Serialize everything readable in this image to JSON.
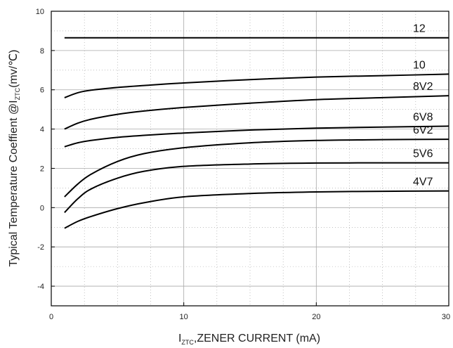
{
  "chart_data": {
    "type": "line",
    "title": "",
    "xlabel": {
      "main": "I",
      "sub": "ZTC",
      "rest": ",ZENER CURRENT (mA)"
    },
    "ylabel": {
      "main": "Typical Temperature Coeffient @I",
      "sub": "ZTC",
      "rest": "(mv/℃)"
    },
    "xlim": [
      0,
      30
    ],
    "ylim": [
      -5,
      10
    ],
    "xticks": [
      0,
      10,
      20,
      30
    ],
    "yticks": [
      -4,
      -2,
      0,
      2,
      4,
      6,
      8,
      10
    ],
    "grid": true,
    "series": [
      {
        "name": "12",
        "x": [
          1,
          2,
          3,
          5,
          7,
          10,
          15,
          20,
          25,
          30
        ],
        "y": [
          8.65,
          8.65,
          8.65,
          8.65,
          8.65,
          8.65,
          8.65,
          8.65,
          8.65,
          8.65
        ]
      },
      {
        "name": "10",
        "x": [
          1,
          2,
          3,
          5,
          7,
          10,
          15,
          20,
          25,
          30
        ],
        "y": [
          5.6,
          5.85,
          5.98,
          6.12,
          6.22,
          6.35,
          6.52,
          6.65,
          6.72,
          6.8
        ]
      },
      {
        "name": "8V2",
        "x": [
          1,
          2,
          3,
          5,
          7,
          10,
          15,
          20,
          25,
          30
        ],
        "y": [
          4.0,
          4.3,
          4.5,
          4.75,
          4.92,
          5.1,
          5.32,
          5.5,
          5.6,
          5.7
        ]
      },
      {
        "name": "6V8",
        "x": [
          1,
          2,
          3,
          5,
          7,
          10,
          15,
          20,
          25,
          30
        ],
        "y": [
          3.1,
          3.3,
          3.42,
          3.58,
          3.68,
          3.8,
          3.95,
          4.05,
          4.1,
          4.15
        ]
      },
      {
        "name": "6V2",
        "x": [
          1,
          2,
          3,
          5,
          7,
          10,
          15,
          20,
          25,
          30
        ],
        "y": [
          0.55,
          1.2,
          1.7,
          2.35,
          2.75,
          3.05,
          3.3,
          3.42,
          3.46,
          3.48
        ]
      },
      {
        "name": "5V6",
        "x": [
          1,
          2,
          3,
          5,
          7,
          10,
          15,
          20,
          25,
          30
        ],
        "y": [
          -0.25,
          0.45,
          0.95,
          1.5,
          1.85,
          2.1,
          2.22,
          2.27,
          2.28,
          2.28
        ]
      },
      {
        "name": "4V7",
        "x": [
          1,
          2,
          3,
          5,
          7,
          10,
          15,
          20,
          25,
          30
        ],
        "y": [
          -1.05,
          -0.7,
          -0.45,
          -0.05,
          0.25,
          0.55,
          0.72,
          0.8,
          0.83,
          0.85
        ]
      }
    ]
  }
}
